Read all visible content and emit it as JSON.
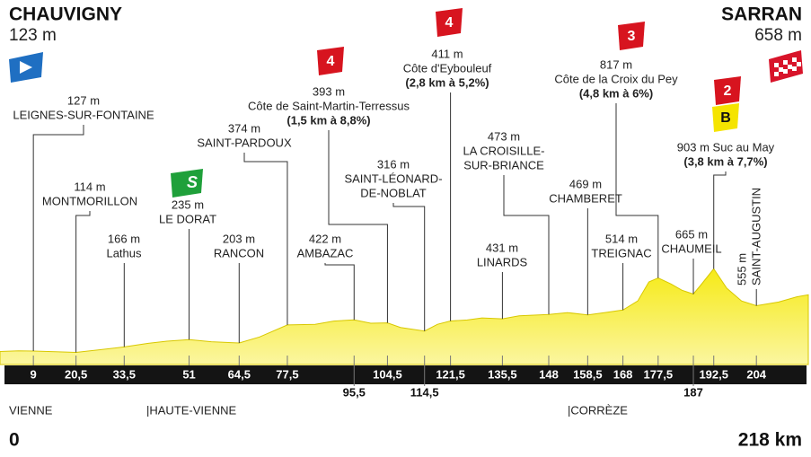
{
  "chart_data": {
    "type": "profile",
    "start": {
      "name": "CHAUVIGNY",
      "altitude": "123 m",
      "km": {
        "value": 0,
        "label": "0"
      }
    },
    "finish": {
      "name": "SARRAN",
      "altitude": "658 m",
      "km": {
        "value": 218,
        "label": "218 km"
      }
    },
    "xlim": [
      0,
      218
    ],
    "ylim": [
      0,
      3000
    ],
    "color": "#f6ea16",
    "x": [
      0,
      5,
      9,
      15,
      20.5,
      27,
      33.5,
      40,
      45,
      51,
      57,
      64.5,
      70,
      77.5,
      85,
      90,
      95.5,
      100,
      104.5,
      108,
      114.5,
      118,
      121.5,
      126,
      130,
      135.5,
      140,
      148,
      153,
      158.5,
      163,
      168,
      172,
      175,
      177.5,
      181,
      184,
      187,
      189,
      192.5,
      196,
      200,
      204,
      210,
      215,
      218
    ],
    "values": [
      123,
      130,
      127,
      120,
      114,
      140,
      166,
      200,
      220,
      235,
      215,
      203,
      260,
      374,
      380,
      410,
      422,
      390,
      393,
      350,
      316,
      380,
      411,
      420,
      440,
      431,
      460,
      473,
      490,
      469,
      490,
      514,
      600,
      780,
      817,
      760,
      700,
      665,
      750,
      903,
      720,
      600,
      555,
      590,
      640,
      658
    ],
    "km_markers": [
      {
        "value": 9,
        "label": "9"
      },
      {
        "value": 20.5,
        "label": "20,5"
      },
      {
        "value": 33.5,
        "label": "33,5"
      },
      {
        "value": 51,
        "label": "51"
      },
      {
        "value": 64.5,
        "label": "64,5"
      },
      {
        "value": 77.5,
        "label": "77,5"
      },
      {
        "value": 95.5,
        "label": "95,5"
      },
      {
        "value": 104.5,
        "label": "104,5"
      },
      {
        "value": 114.5,
        "label": "114,5"
      },
      {
        "value": 121.5,
        "label": "121,5"
      },
      {
        "value": 135.5,
        "label": "135,5"
      },
      {
        "value": 148,
        "label": "148"
      },
      {
        "value": 158.5,
        "label": "158,5"
      },
      {
        "value": 168,
        "label": "168"
      },
      {
        "value": 177.5,
        "label": "177,5"
      },
      {
        "value": 187,
        "label": "187"
      },
      {
        "value": 192.5,
        "label": "192,5"
      },
      {
        "value": 204,
        "label": "204"
      }
    ],
    "waypoints": [
      {
        "km": 9,
        "lines": [
          "127 m",
          "LEIGNES-SUR-FONTAINE"
        ]
      },
      {
        "km": 20.5,
        "lines": [
          "114 m",
          "MONTMORILLON"
        ]
      },
      {
        "km": 33.5,
        "lines": [
          "166 m",
          "Lathus"
        ]
      },
      {
        "km": 51,
        "lines": [
          "235 m",
          "LE DORAT"
        ],
        "sprint": "S"
      },
      {
        "km": 64.5,
        "lines": [
          "203 m",
          "RANCON"
        ]
      },
      {
        "km": 77.5,
        "lines": [
          "374 m",
          "SAINT-PARDOUX"
        ]
      },
      {
        "km": 104.5,
        "lines": [
          "393 m",
          "Côte de Saint-Martin-Terressus"
        ],
        "detail": "(1,5 km à 8,8%)",
        "category": "4"
      },
      {
        "km": 95.5,
        "lines": [
          "422 m",
          "AMBAZAC"
        ]
      },
      {
        "km": 114.5,
        "lines": [
          "316 m",
          "SAINT-LÉONARD-",
          "DE-NOBLAT"
        ]
      },
      {
        "km": 121.5,
        "lines": [
          "411 m",
          "Côte d'Eybouleuf"
        ],
        "detail": "(2,8 km à 5,2%)",
        "category": "4"
      },
      {
        "km": 135.5,
        "lines": [
          "431 m",
          "LINARDS"
        ]
      },
      {
        "km": 148,
        "lines": [
          "473 m",
          "LA CROISILLE-",
          "SUR-BRIANCE"
        ]
      },
      {
        "km": 158.5,
        "lines": [
          "469 m",
          "CHAMBERET"
        ]
      },
      {
        "km": 168,
        "lines": [
          "514 m",
          "TREIGNAC"
        ]
      },
      {
        "km": 177.5,
        "lines": [
          "817 m",
          "Côte de la Croix du Pey"
        ],
        "detail": "(4,8 km à 6%)",
        "category": "3"
      },
      {
        "km": 187,
        "lines": [
          "665 m",
          "CHAUMEIL"
        ]
      },
      {
        "km": 192.5,
        "lines": [
          "903 m Suc au May"
        ],
        "detail": "(3,8 km à 7,7%)",
        "category": "2",
        "bonus": "B"
      },
      {
        "km": 204,
        "lines": [
          "555 m",
          "SAINT-AUGUSTIN"
        ]
      }
    ],
    "regions": [
      "VIENNE",
      "|HAUTE-VIENNE",
      "|CORRÈZE"
    ]
  }
}
